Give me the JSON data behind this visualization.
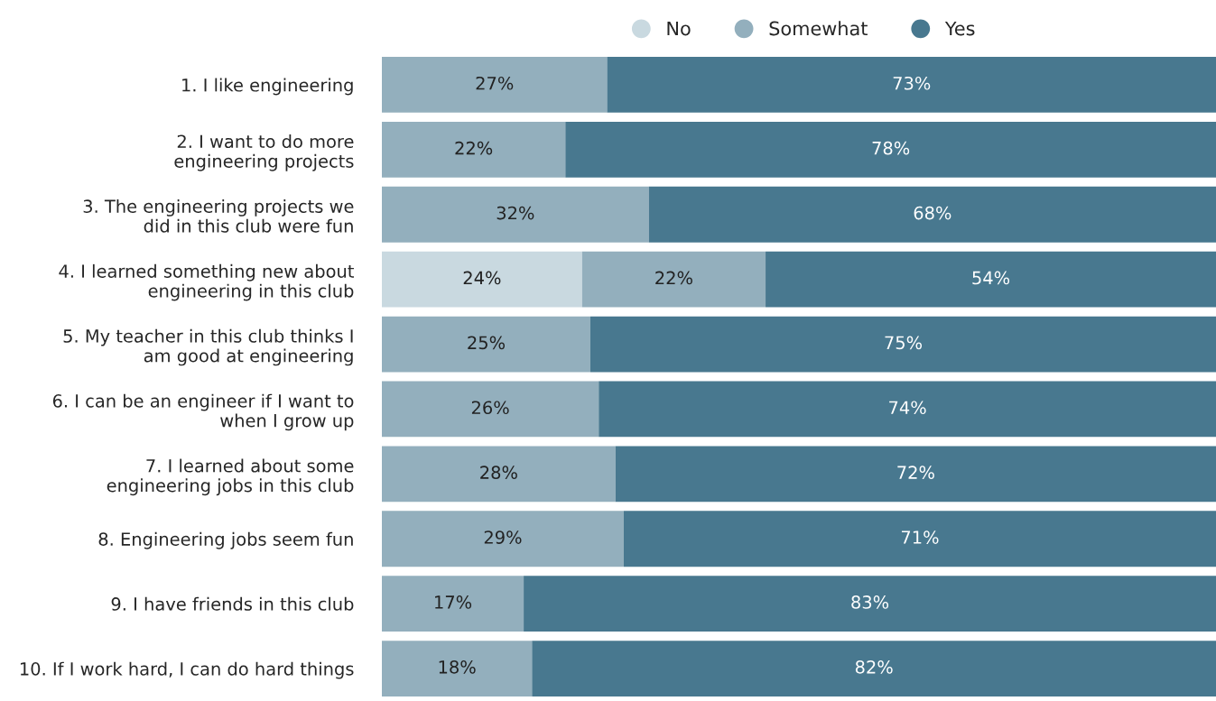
{
  "chart_data": {
    "type": "bar",
    "orientation": "horizontal",
    "stacked": true,
    "categories": [
      "1. I like engineering",
      "2. I want to do more\nengineering projects",
      "3. The engineering projects we\ndid in this club were fun",
      "4. I learned something new about\nengineering in this club",
      "5. My teacher in this club thinks I\nam good at engineering",
      "6. I can be an engineer if I want to\nwhen I grow up",
      "7. I learned about some\nengineering jobs in this club",
      "8. Engineering jobs seem fun",
      "9. I have friends in this club",
      "10. If I work hard, I can do hard things"
    ],
    "series": [
      {
        "name": "No",
        "color": "#c9d9e0",
        "values": [
          null,
          null,
          null,
          24,
          null,
          null,
          null,
          null,
          null,
          null
        ],
        "value_labels": [
          null,
          null,
          null,
          "24%",
          null,
          null,
          null,
          null,
          null,
          null
        ]
      },
      {
        "name": "Somewhat",
        "color": "#93afbd",
        "values": [
          27,
          22,
          32,
          22,
          25,
          26,
          28,
          29,
          17,
          18
        ],
        "value_labels": [
          "27%",
          "22%",
          "32%",
          "22%",
          "25%",
          "26%",
          "28%",
          "29%",
          "17%",
          "18%"
        ]
      },
      {
        "name": "Yes",
        "color": "#48788f",
        "values": [
          73,
          78,
          68,
          54,
          75,
          74,
          72,
          71,
          83,
          82
        ],
        "value_labels": [
          "73%",
          "78%",
          "68%",
          "54%",
          "75%",
          "74%",
          "72%",
          "71%",
          "83%",
          "82%"
        ]
      }
    ],
    "xlim": [
      0,
      100
    ],
    "tick_labels": "y",
    "grid": false,
    "legend": "top"
  }
}
